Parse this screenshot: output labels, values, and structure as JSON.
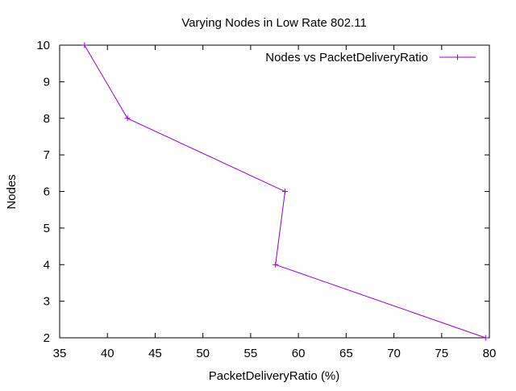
{
  "chart_data": {
    "type": "line",
    "title": "Varying Nodes in Low Rate 802.11",
    "xlabel": "PacketDeliveryRatio (%)",
    "ylabel": "Nodes",
    "xlim": [
      35,
      80
    ],
    "ylim": [
      2,
      10
    ],
    "xticks": [
      35,
      40,
      45,
      50,
      55,
      60,
      65,
      70,
      75,
      80
    ],
    "yticks": [
      2,
      3,
      4,
      5,
      6,
      7,
      8,
      9,
      10
    ],
    "grid": false,
    "legend_position": "top-right",
    "series": [
      {
        "name": "Nodes vs PacketDeliveryRatio",
        "color": "#9400d3",
        "marker": "plus",
        "x": [
          37.6,
          42.1,
          58.6,
          57.6,
          79.6
        ],
        "y": [
          10,
          8,
          6,
          4,
          2
        ]
      }
    ]
  }
}
